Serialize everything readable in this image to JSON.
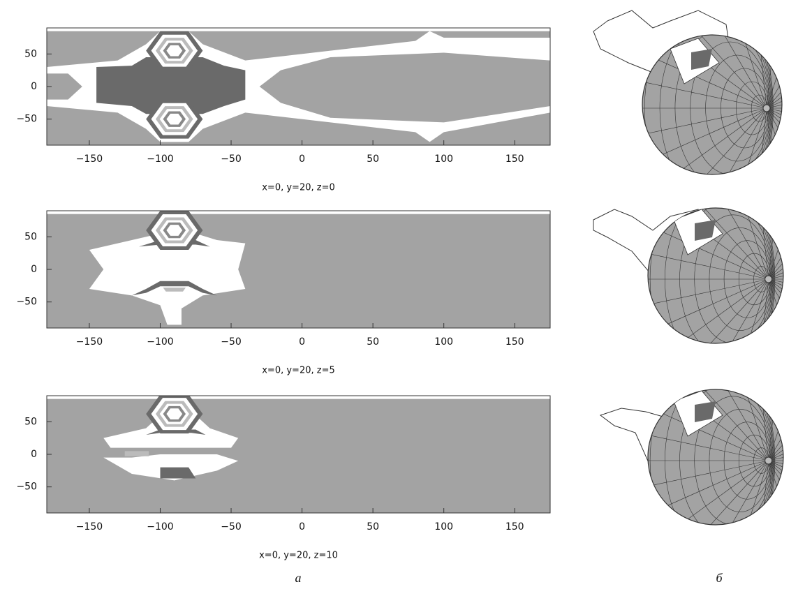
{
  "chart_data": [
    {
      "type": "contour",
      "xlabel": "x=0, y=20, z=0",
      "xlim": [
        -180,
        175
      ],
      "ylim": [
        -90,
        90
      ],
      "xticks": [
        {
          "value": -150,
          "label": "−150"
        },
        {
          "value": -100,
          "label": "−100"
        },
        {
          "value": -50,
          "label": "−50"
        },
        0,
        50,
        100,
        150
      ],
      "yticks": [
        {
          "value": -50,
          "label": "−50"
        },
        0,
        50
      ]
    },
    {
      "type": "contour",
      "xlabel": "x=0, y=20, z=5",
      "xlim": [
        -180,
        175
      ],
      "ylim": [
        -90,
        90
      ],
      "xticks": [
        {
          "value": -150,
          "label": "−150"
        },
        {
          "value": -100,
          "label": "−100"
        },
        {
          "value": -50,
          "label": "−50"
        },
        0,
        50,
        100,
        150
      ],
      "yticks": [
        {
          "value": -50,
          "label": "−50"
        },
        0,
        50
      ]
    },
    {
      "type": "contour",
      "xlabel": "x=0, y=20, z=10",
      "xlim": [
        -180,
        175
      ],
      "ylim": [
        -90,
        90
      ],
      "xticks": [
        {
          "value": -150,
          "label": "−150"
        },
        {
          "value": -100,
          "label": "−100"
        },
        {
          "value": -50,
          "label": "−50"
        },
        0,
        50,
        100,
        150
      ],
      "yticks": [
        {
          "value": -50,
          "label": "−50"
        },
        0,
        50
      ]
    }
  ],
  "panel_labels": [
    "а",
    "б"
  ]
}
